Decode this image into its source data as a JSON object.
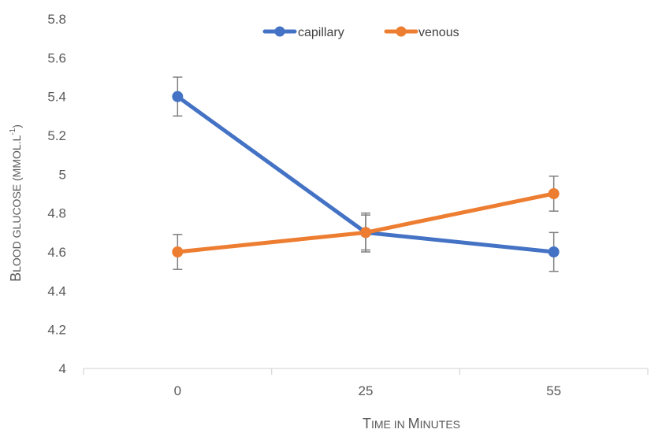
{
  "chart_data": {
    "type": "line",
    "categories": [
      "0",
      "25",
      "55"
    ],
    "series": [
      {
        "name": "capillary",
        "color": "#4472C4",
        "values": [
          5.4,
          4.7,
          4.6
        ],
        "error": [
          0.1,
          0.1,
          0.1
        ]
      },
      {
        "name": "venous",
        "color": "#ED7D31",
        "values": [
          4.6,
          4.7,
          4.9
        ],
        "error": [
          0.09,
          0.09,
          0.09
        ]
      }
    ],
    "ylim": [
      4,
      5.8
    ],
    "yticks": [
      4,
      4.2,
      4.4,
      4.6,
      4.8,
      5,
      5.2,
      5.4,
      5.6,
      5.8
    ],
    "ytick_labels": [
      "4",
      "4.2",
      "4.4",
      "4.6",
      "4.8",
      "5",
      "5.2",
      "5.4",
      "5.6",
      "5.8"
    ],
    "xlabel": {
      "parts": [
        {
          "text": "T",
          "size": "big"
        },
        {
          "text": "IME IN ",
          "size": "small"
        },
        {
          "text": "M",
          "size": "big"
        },
        {
          "text": "INUTES",
          "size": "small"
        }
      ]
    },
    "ylabel": {
      "parts": [
        {
          "text": "B",
          "size": "big"
        },
        {
          "text": "LOOD GLUCOSE (MMOL.L",
          "size": "small"
        },
        {
          "text": "-1",
          "size": "sup"
        },
        {
          "text": ")",
          "size": "small"
        }
      ]
    },
    "legend_position": "top-center",
    "grid": false
  }
}
